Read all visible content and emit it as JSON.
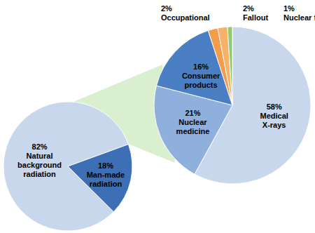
{
  "chart_data": [
    {
      "type": "pie",
      "categories": [
        "Natural background radiation",
        "Man-made radiation"
      ],
      "values": [
        82,
        18
      ],
      "value_labels": [
        "82%",
        "18%"
      ],
      "data_labels": true,
      "colors": [
        "#c8d7ec",
        "#3d6fb6"
      ]
    },
    {
      "type": "pie",
      "categories": [
        "Medical X-rays",
        "Nuclear medicine",
        "Consumer products",
        "Occupational",
        "Fallout",
        "Nuclear fuel cycle"
      ],
      "values": [
        58,
        21,
        16,
        2,
        2,
        1
      ],
      "value_labels": [
        "58%",
        "21%",
        "16%",
        "2%",
        "2%",
        "1%"
      ],
      "data_labels": true,
      "colors": [
        "#c8d7ec",
        "#8fb0dc",
        "#4a7fc3",
        "#f39c4a",
        "#f6b26b",
        "#8fca6e"
      ]
    }
  ]
}
